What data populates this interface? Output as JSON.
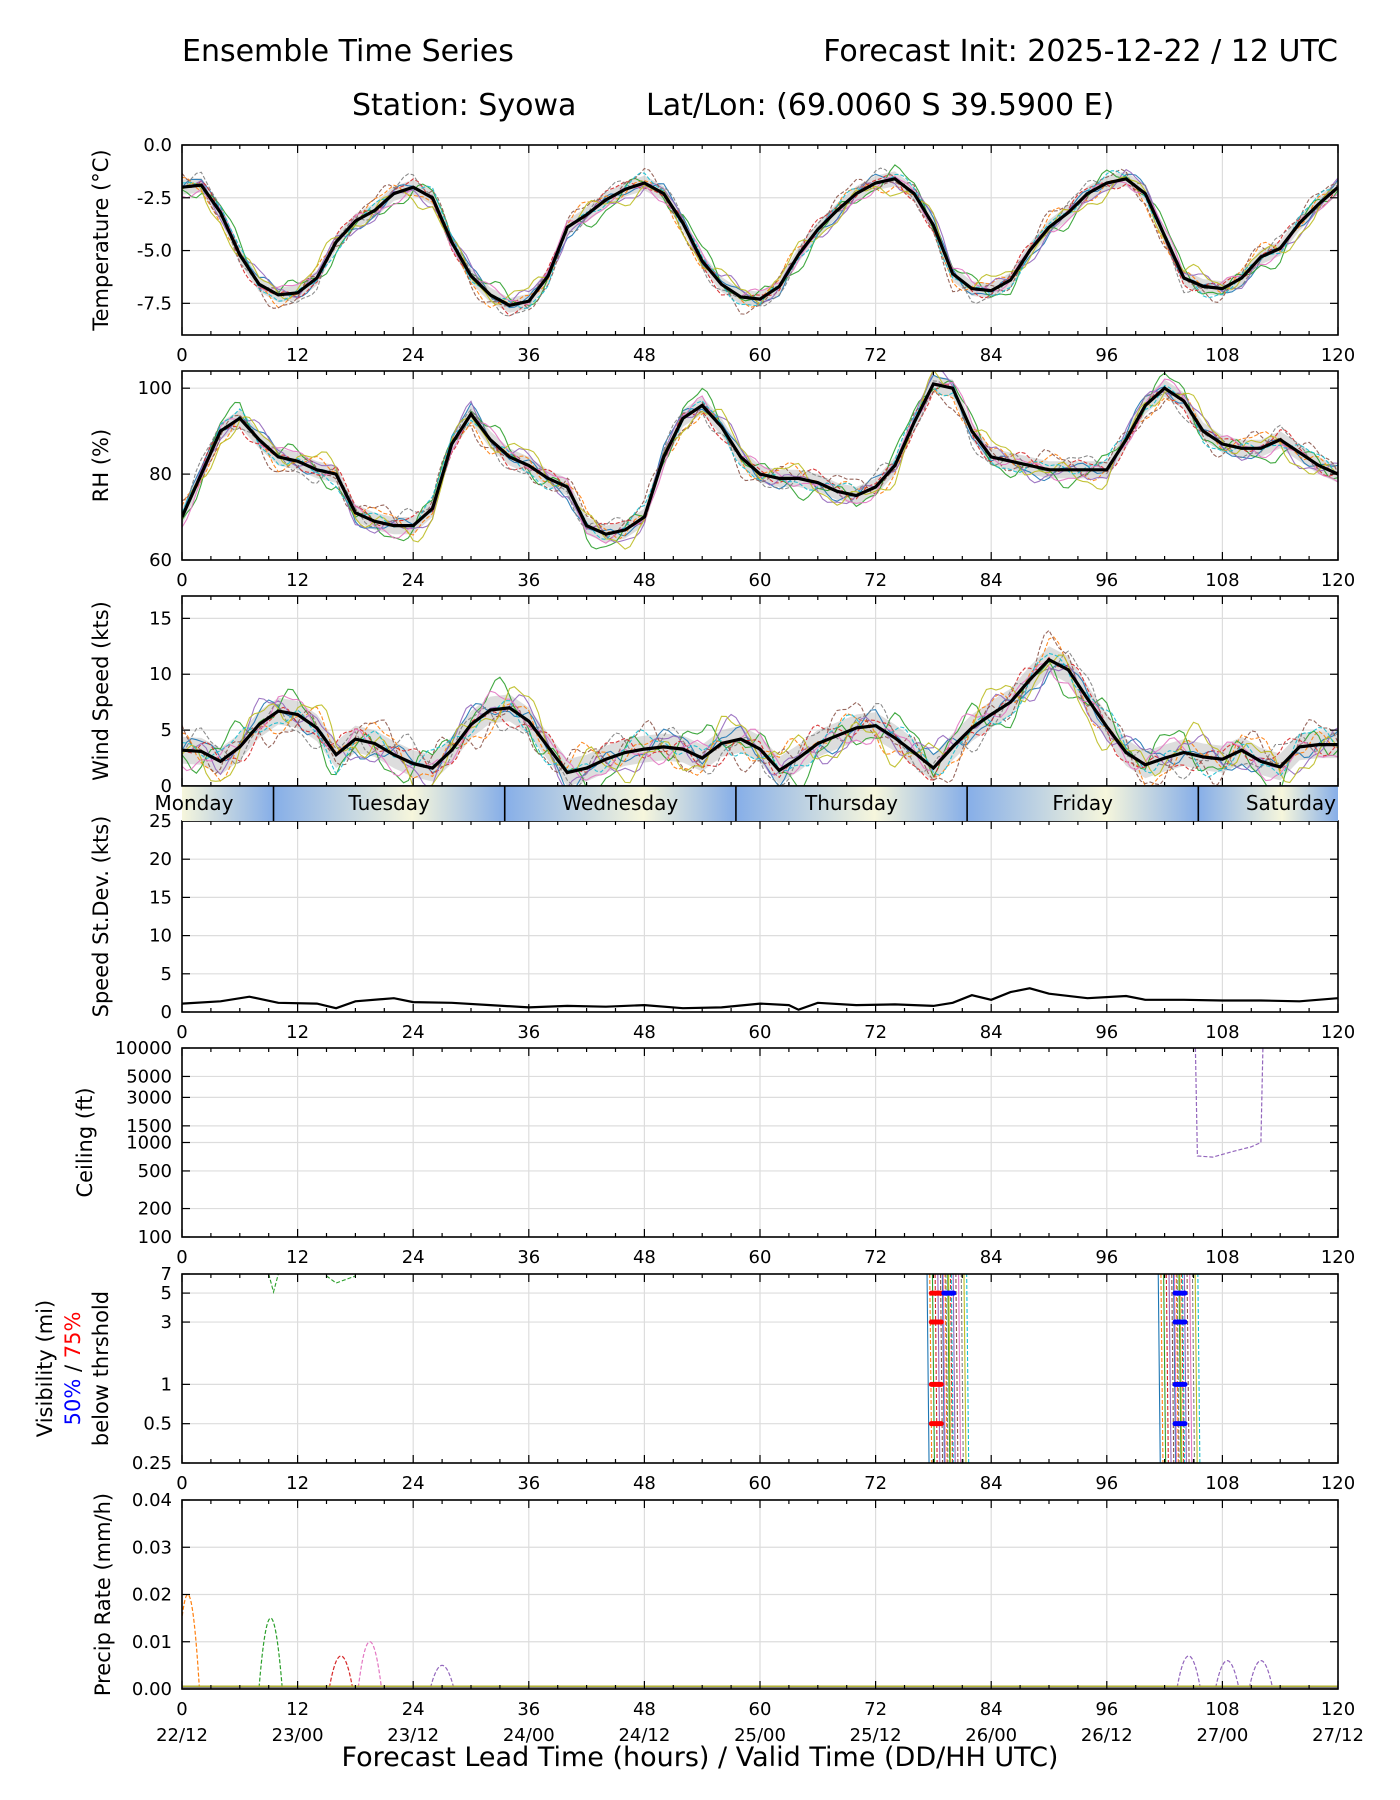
{
  "header": {
    "title_left": "Ensemble Time Series",
    "title_right": "Forecast Init: 2025-12-22 / 12 UTC",
    "station": "Station: Syowa",
    "latlon": "Lat/Lon: (69.0060 S 39.5900 E)"
  },
  "xaxis": {
    "label": "Forecast Lead Time (hours) / Valid Time (DD/HH UTC)",
    "lead_ticks": [
      "0",
      "12",
      "24",
      "36",
      "48",
      "60",
      "72",
      "84",
      "96",
      "108",
      "120"
    ],
    "valid_ticks": [
      "22/12",
      "23/00",
      "23/12",
      "24/00",
      "24/12",
      "25/00",
      "25/12",
      "26/00",
      "26/12",
      "27/00",
      "27/12"
    ],
    "xlim": [
      0,
      120
    ]
  },
  "day_strip": {
    "days": [
      "Monday",
      "Tuesday",
      "Wednesday",
      "Thursday",
      "Friday",
      "Saturday"
    ],
    "boundaries_h": [
      9.5,
      33.5,
      57.5,
      81.5,
      105.5
    ]
  },
  "colors": {
    "mean": "#000000",
    "threshold_50": "#0000ff",
    "threshold_75": "#ff0000",
    "grid": "#dddddd",
    "members": [
      "#1f77b4",
      "#ff7f0e",
      "#2ca02c",
      "#d62728",
      "#9467bd",
      "#8c564b",
      "#e377c2",
      "#7f7f7f",
      "#bcbd22",
      "#17becf"
    ]
  },
  "chart_data": [
    {
      "type": "line",
      "title": "Temperature",
      "ylabel": "Temperature (°C)",
      "ylim": [
        -9,
        0
      ],
      "yticks": [
        0,
        -2.5,
        -5,
        -7.5
      ],
      "ytick_labels": [
        "0.0",
        "-2.5",
        "-5.0",
        "-7.5"
      ],
      "mean": {
        "x": [
          0,
          2,
          4,
          6,
          8,
          10,
          12,
          14,
          16,
          18,
          20,
          22,
          24,
          26,
          28,
          30,
          32,
          34,
          36,
          38,
          40,
          42,
          44,
          46,
          48,
          50,
          52,
          54,
          56,
          58,
          60,
          62,
          64,
          66,
          68,
          70,
          72,
          74,
          76,
          78,
          80,
          82,
          84,
          86,
          88,
          90,
          92,
          94,
          96,
          98,
          100,
          102,
          104,
          106,
          108,
          110,
          112,
          114,
          116,
          118,
          120
        ],
        "y": [
          -2,
          -1.9,
          -3.2,
          -5.2,
          -6.6,
          -7.1,
          -7.0,
          -6.3,
          -4.6,
          -3.6,
          -3.1,
          -2.3,
          -2.0,
          -2.5,
          -4.6,
          -6.2,
          -7.1,
          -7.6,
          -7.4,
          -6.2,
          -3.9,
          -3.3,
          -2.6,
          -2.1,
          -1.8,
          -2.3,
          -3.7,
          -5.5,
          -6.6,
          -7.2,
          -7.3,
          -6.7,
          -5.2,
          -4.0,
          -3.1,
          -2.3,
          -1.8,
          -1.6,
          -2.3,
          -3.8,
          -6.1,
          -6.8,
          -6.9,
          -6.4,
          -5.0,
          -3.9,
          -3.2,
          -2.3,
          -1.8,
          -1.6,
          -2.3,
          -4.3,
          -6.3,
          -6.7,
          -6.8,
          -6.3,
          -5.3,
          -4.9,
          -3.7,
          -2.8,
          -2.0
        ]
      },
      "spread": 0.35
    },
    {
      "type": "line",
      "title": "Relative Humidity",
      "ylabel": "RH (%)",
      "ylim": [
        60,
        104
      ],
      "yticks": [
        60,
        80,
        100
      ],
      "ytick_labels": [
        "60",
        "80",
        "100"
      ],
      "mean": {
        "x": [
          0,
          2,
          4,
          6,
          8,
          10,
          12,
          14,
          16,
          18,
          20,
          22,
          24,
          26,
          28,
          30,
          32,
          34,
          36,
          38,
          40,
          42,
          44,
          46,
          48,
          50,
          52,
          54,
          56,
          58,
          60,
          62,
          64,
          66,
          68,
          70,
          72,
          74,
          76,
          78,
          80,
          82,
          84,
          86,
          88,
          90,
          92,
          94,
          96,
          98,
          100,
          102,
          104,
          106,
          108,
          110,
          112,
          114,
          116,
          118,
          120
        ],
        "y": [
          70,
          80,
          90,
          93,
          88,
          84,
          83,
          81,
          80,
          71,
          69,
          68,
          68,
          72,
          87,
          94,
          88,
          84,
          82,
          79,
          77,
          68,
          66,
          67,
          70,
          84,
          93,
          96,
          91,
          84,
          80,
          79,
          79,
          78,
          76,
          75,
          77,
          82,
          92,
          101,
          100,
          90,
          84,
          83,
          82,
          81,
          81,
          81,
          81,
          88,
          96,
          100,
          97,
          90,
          87,
          86,
          86,
          88,
          85,
          82,
          80
        ]
      },
      "spread": 2.0
    },
    {
      "type": "line",
      "title": "Wind Speed",
      "ylabel": "Wind Speed (kts)",
      "ylim": [
        0,
        17
      ],
      "yticks": [
        0,
        5,
        10,
        15
      ],
      "ytick_labels": [
        "0",
        "5",
        "10",
        "15"
      ],
      "mean": {
        "x": [
          0,
          2,
          4,
          6,
          8,
          10,
          12,
          14,
          16,
          18,
          20,
          22,
          24,
          26,
          28,
          30,
          32,
          34,
          36,
          38,
          40,
          42,
          44,
          46,
          48,
          50,
          52,
          54,
          56,
          58,
          60,
          62,
          64,
          66,
          68,
          70,
          72,
          74,
          76,
          78,
          80,
          82,
          84,
          86,
          88,
          90,
          92,
          94,
          96,
          98,
          100,
          102,
          104,
          106,
          108,
          110,
          112,
          114,
          116,
          118,
          120
        ],
        "y": [
          3.2,
          3.1,
          2.2,
          3.5,
          5.5,
          6.7,
          6.4,
          5.2,
          2.8,
          4.2,
          3.8,
          2.8,
          2.0,
          1.6,
          3.2,
          5.5,
          6.8,
          7.0,
          5.8,
          3.5,
          1.2,
          1.6,
          2.4,
          3.0,
          3.3,
          3.5,
          3.3,
          2.5,
          3.8,
          4.2,
          3.3,
          1.4,
          2.5,
          3.8,
          4.5,
          5.2,
          5.4,
          4.3,
          3.0,
          1.6,
          3.5,
          5.2,
          6.4,
          7.5,
          9.5,
          11.3,
          10.4,
          7.8,
          5.3,
          3.0,
          1.9,
          2.5,
          3.0,
          2.6,
          2.4,
          3.2,
          2.2,
          1.7,
          3.5,
          3.7,
          3.7
        ]
      },
      "spread": 1.2
    },
    {
      "type": "line",
      "title": "Speed Standard Deviation",
      "ylabel": "Speed St.Dev. (kts)",
      "ylim": [
        0,
        25
      ],
      "yticks": [
        0,
        5,
        10,
        15,
        20,
        25
      ],
      "ytick_labels": [
        "0",
        "5",
        "10",
        "15",
        "20",
        "25"
      ],
      "mean": {
        "x": [
          0,
          4,
          7,
          10,
          14,
          16,
          18,
          22,
          24,
          28,
          32,
          36,
          40,
          44,
          48,
          52,
          56,
          60,
          63,
          64,
          66,
          70,
          74,
          78,
          80,
          82,
          84,
          86,
          88,
          90,
          94,
          98,
          100,
          104,
          108,
          112,
          116,
          120
        ],
        "y": [
          1.1,
          1.4,
          2.0,
          1.2,
          1.1,
          0.5,
          1.4,
          1.8,
          1.3,
          1.2,
          0.9,
          0.6,
          0.8,
          0.7,
          0.9,
          0.5,
          0.6,
          1.1,
          0.9,
          0.3,
          1.2,
          0.9,
          1.0,
          0.8,
          1.2,
          2.2,
          1.6,
          2.6,
          3.1,
          2.4,
          1.8,
          2.1,
          1.6,
          1.6,
          1.5,
          1.5,
          1.4,
          1.8
        ]
      }
    },
    {
      "type": "line",
      "title": "Ceiling",
      "ylabel": "Ceiling (ft)",
      "yscale": "log",
      "ylim": [
        100,
        10000
      ],
      "yticks": [
        100,
        200,
        500,
        1000,
        1500,
        3000,
        5000,
        10000
      ],
      "ytick_labels": [
        "100",
        "200",
        "500",
        "1000",
        "1500",
        "3000",
        "5000",
        "10000"
      ],
      "member_line": {
        "x": [
          105.2,
          105.4,
          107,
          109,
          111,
          112,
          112.2
        ],
        "y": [
          10000,
          720,
          700,
          800,
          900,
          1000,
          10000
        ]
      }
    },
    {
      "type": "line",
      "title": "Visibility",
      "ylabel": "Visibility (mi)",
      "ylabel_line2a": "50%",
      "ylabel_slash": "/",
      "ylabel_line2b": "75%",
      "ylabel_line3": "below thrshold",
      "yscale": "log",
      "ylim": [
        0.25,
        7
      ],
      "yticks": [
        0.25,
        0.5,
        1,
        3,
        5,
        7
      ],
      "ytick_labels": [
        "0.25",
        "0.5",
        "1",
        "3",
        "5",
        "7"
      ],
      "drop_hours": [
        79.5,
        103.5
      ],
      "threshold_50_markers": {
        "x": [
          79.6,
          103.6,
          103.6,
          103.6,
          103.6
        ],
        "y": [
          5,
          5,
          3,
          1,
          0.5
        ]
      },
      "threshold_75_markers": {
        "x": [
          78.3,
          78.3,
          78.3,
          78.3
        ],
        "y": [
          5,
          3,
          1,
          0.5
        ]
      }
    },
    {
      "type": "line",
      "title": "Precipitation Rate",
      "ylabel": "Precip Rate (mm/h)",
      "ylim": [
        0,
        0.04
      ],
      "yticks": [
        0,
        0.01,
        0.02,
        0.03,
        0.04
      ],
      "ytick_labels": [
        "0.00",
        "0.01",
        "0.02",
        "0.03",
        "0.04"
      ],
      "member_peaks": [
        {
          "hour": 0.6,
          "value": 0.02,
          "color_index": 1
        },
        {
          "hour": 9.2,
          "value": 0.015,
          "color_index": 2
        },
        {
          "hour": 16.5,
          "value": 0.007,
          "color_index": 3
        },
        {
          "hour": 19.5,
          "value": 0.01,
          "color_index": 6
        },
        {
          "hour": 27.0,
          "value": 0.005,
          "color_index": 4
        },
        {
          "hour": 104.5,
          "value": 0.007,
          "color_index": 4
        },
        {
          "hour": 108.5,
          "value": 0.006,
          "color_index": 4
        },
        {
          "hour": 112.0,
          "value": 0.006,
          "color_index": 4
        }
      ]
    }
  ]
}
